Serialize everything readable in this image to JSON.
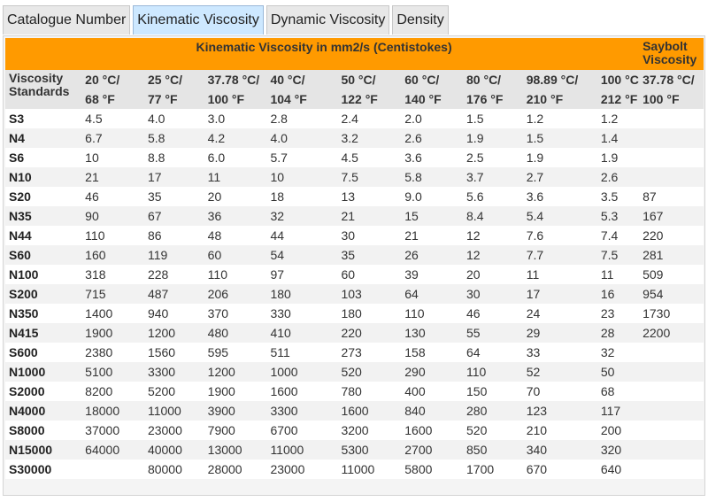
{
  "tabs": [
    "Catalogue Number",
    "Kinematic Viscosity",
    "Dynamic Viscosity",
    "Density"
  ],
  "header": {
    "kinematic_title": "Kinematic Viscosity in mm2/s (Centistokes)",
    "saybolt_title_1": "Saybolt",
    "saybolt_title_2": "Viscosity",
    "standards_label_1": "Viscosity",
    "standards_label_2": "Standards",
    "temps_c": [
      "20 °C/",
      "25 °C/",
      "37.78 °C/",
      "40 °C/",
      "50 °C/",
      "60 °C/",
      "80 °C/",
      "98.89 °C/",
      "100 °C/",
      "37.78 °C/"
    ],
    "temps_f": [
      "68 °F",
      "77 °F",
      "100 °F",
      "104 °F",
      "122 °F",
      "140 °F",
      "176 °F",
      "210 °F",
      "212 °F",
      "100 °F"
    ]
  },
  "rows": [
    {
      "std": "S3",
      "v": [
        "4.5",
        "4.0",
        "3.0",
        "2.8",
        "2.4",
        "2.0",
        "1.5",
        "1.2",
        "1.2",
        ""
      ]
    },
    {
      "std": "N4",
      "v": [
        "6.7",
        "5.8",
        "4.2",
        "4.0",
        "3.2",
        "2.6",
        "1.9",
        "1.5",
        "1.4",
        ""
      ]
    },
    {
      "std": "S6",
      "v": [
        "10",
        "8.8",
        "6.0",
        "5.7",
        "4.5",
        "3.6",
        "2.5",
        "1.9",
        "1.9",
        ""
      ]
    },
    {
      "std": "N10",
      "v": [
        "21",
        "17",
        "11",
        "10",
        "7.5",
        "5.8",
        "3.7",
        "2.7",
        "2.6",
        ""
      ]
    },
    {
      "std": "S20",
      "v": [
        "46",
        "35",
        "20",
        "18",
        "13",
        "9.0",
        "5.6",
        "3.6",
        "3.5",
        "87"
      ]
    },
    {
      "std": "N35",
      "v": [
        "90",
        "67",
        "36",
        "32",
        "21",
        "15",
        "8.4",
        "5.4",
        "5.3",
        "167"
      ]
    },
    {
      "std": "N44",
      "v": [
        "110",
        "86",
        "48",
        "44",
        "30",
        "21",
        "12",
        "7.6",
        "7.4",
        "220"
      ]
    },
    {
      "std": "S60",
      "v": [
        "160",
        "119",
        "60",
        "54",
        "35",
        "26",
        "12",
        "7.7",
        "7.5",
        "281"
      ]
    },
    {
      "std": "N100",
      "v": [
        "318",
        "228",
        "110",
        "97",
        "60",
        "39",
        "20",
        "11",
        "11",
        "509"
      ]
    },
    {
      "std": "S200",
      "v": [
        "715",
        "487",
        "206",
        "180",
        "103",
        "64",
        "30",
        "17",
        "16",
        "954"
      ]
    },
    {
      "std": "N350",
      "v": [
        "1400",
        "940",
        "370",
        "330",
        "180",
        "110",
        "46",
        "24",
        "23",
        "1730"
      ]
    },
    {
      "std": "N415",
      "v": [
        "1900",
        "1200",
        "480",
        "410",
        "220",
        "130",
        "55",
        "29",
        "28",
        "2200"
      ]
    },
    {
      "std": "S600",
      "v": [
        "2380",
        "1560",
        "595",
        "511",
        "273",
        "158",
        "64",
        "33",
        "32",
        ""
      ]
    },
    {
      "std": "N1000",
      "v": [
        "5100",
        "3300",
        "1200",
        "1000",
        "520",
        "290",
        "110",
        "52",
        "50",
        ""
      ]
    },
    {
      "std": "S2000",
      "v": [
        "8200",
        "5200",
        "1900",
        "1600",
        "780",
        "400",
        "150",
        "70",
        "68",
        ""
      ]
    },
    {
      "std": "N4000",
      "v": [
        "18000",
        "11000",
        "3900",
        "3300",
        "1600",
        "840",
        "280",
        "123",
        "117",
        ""
      ]
    },
    {
      "std": "S8000",
      "v": [
        "37000",
        "23000",
        "7900",
        "6700",
        "3200",
        "1600",
        "520",
        "210",
        "200",
        ""
      ]
    },
    {
      "std": "N15000",
      "v": [
        "64000",
        "40000",
        "13000",
        "11000",
        "5300",
        "2700",
        "850",
        "340",
        "320",
        ""
      ]
    },
    {
      "std": "S30000",
      "v": [
        "",
        "80000",
        "28000",
        "23000",
        "11000",
        "5800",
        "1700",
        "670",
        "640",
        ""
      ]
    }
  ]
}
